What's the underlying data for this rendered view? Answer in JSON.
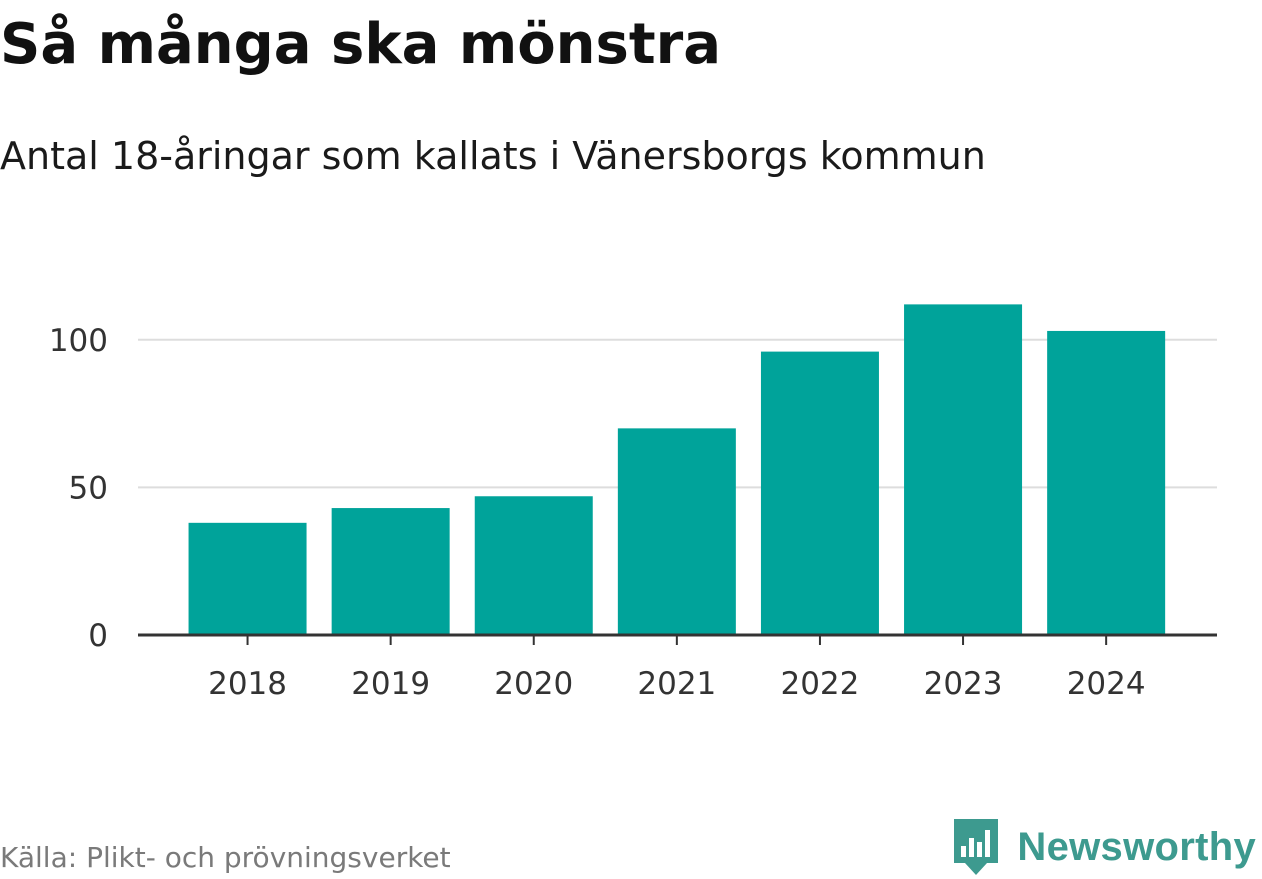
{
  "header": {
    "title": "Så många ska mönstra",
    "subtitle": "Antal 18-åringar som kallats i Vänersborgs kommun"
  },
  "footer": {
    "source": "Källa: Plikt- och prövningsverket",
    "brand": "Newsworthy",
    "brand_icon": "newsworthy-logo-icon"
  },
  "colors": {
    "bar": "#00a39a",
    "grid": "#dddddd",
    "axis": "#333333",
    "brand": "#3d9a8f"
  },
  "chart_data": {
    "type": "bar",
    "title": "Så många ska mönstra",
    "subtitle": "Antal 18-åringar som kallats i Vänersborgs kommun",
    "categories": [
      "2018",
      "2019",
      "2020",
      "2021",
      "2022",
      "2023",
      "2024"
    ],
    "series": [
      {
        "name": "Antal 18-åringar",
        "values": [
          38,
          43,
          47,
          70,
          96,
          112,
          103
        ]
      }
    ],
    "xlabel": "",
    "ylabel": "",
    "ylim": [
      0,
      125
    ],
    "yticks": [
      0,
      50,
      100
    ],
    "ytick_labels": [
      "0",
      "50",
      "100"
    ],
    "grid": true,
    "legend": "none"
  }
}
